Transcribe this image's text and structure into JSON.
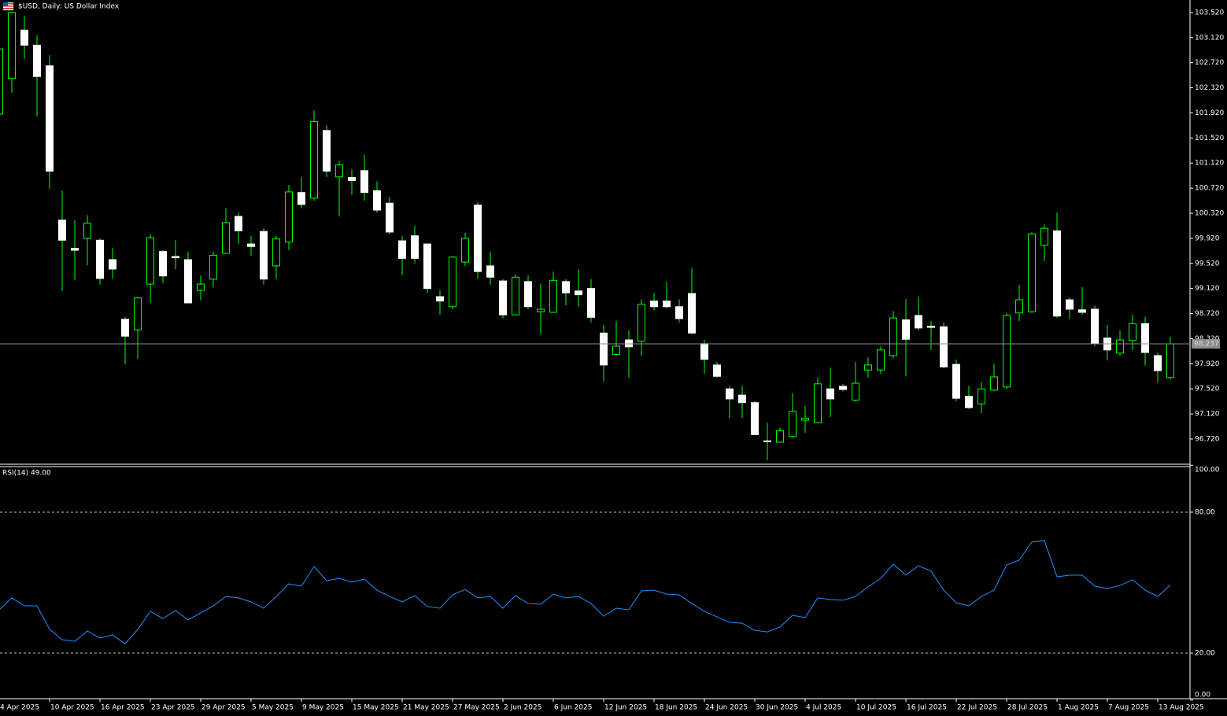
{
  "chart_data": [
    {
      "type": "candlestick",
      "title": "$USD, Daily:  US Dollar Index",
      "categories": [
        "4 Apr 2025",
        null,
        null,
        null,
        "10 Apr 2025",
        null,
        null,
        null,
        "16 Apr 2025",
        null,
        null,
        null,
        "23 Apr 2025",
        null,
        null,
        null,
        "29 Apr 2025",
        null,
        null,
        null,
        "5 May 2025",
        null,
        null,
        null,
        "9 May 2025",
        null,
        null,
        null,
        "15 May 2025",
        null,
        null,
        null,
        "21 May 2025",
        null,
        null,
        null,
        "27 May 2025",
        null,
        null,
        null,
        "2 Jun 2025",
        null,
        null,
        null,
        "6 Jun 2025",
        null,
        null,
        null,
        "12 Jun 2025",
        null,
        null,
        null,
        "18 Jun 2025",
        null,
        null,
        null,
        "24 Jun 2025",
        null,
        null,
        null,
        "30 Jun 2025",
        null,
        null,
        null,
        "4 Jul 2025",
        null,
        null,
        null,
        "10 Jul 2025",
        null,
        null,
        null,
        "16 Jul 2025",
        null,
        null,
        null,
        "22 Jul 2025",
        null,
        null,
        null,
        "28 Jul 2025",
        null,
        null,
        null,
        "1 Aug 2025",
        null,
        null,
        null,
        "7 Aug 2025",
        null,
        null,
        null,
        "13 Aug 2025",
        null
      ],
      "open": [
        101.9,
        102.47,
        103.24,
        103.0,
        102.67,
        100.21,
        99.76,
        99.92,
        99.89,
        99.58,
        98.63,
        98.46,
        99.19,
        99.71,
        99.63,
        99.58,
        99.09,
        99.27,
        99.68,
        100.27,
        99.83,
        100.03,
        99.48,
        99.86,
        100.65,
        100.56,
        101.64,
        100.9,
        100.89,
        101.0,
        100.68,
        100.48,
        99.88,
        99.96,
        99.83,
        98.99,
        98.83,
        99.54,
        100.45,
        99.48,
        99.24,
        98.7,
        99.23,
        98.75,
        98.74,
        99.23,
        99.08,
        99.12,
        98.41,
        98.07,
        98.3,
        98.28,
        98.92,
        98.92,
        98.83,
        99.04,
        98.24,
        97.9,
        97.52,
        97.42,
        97.3,
        96.69,
        96.67,
        96.76,
        97.02,
        96.98,
        97.52,
        97.56,
        97.34,
        97.82,
        97.82,
        98.05,
        98.62,
        98.69,
        98.52,
        98.51,
        97.91,
        97.4,
        97.28,
        97.5,
        97.55,
        98.73,
        98.75,
        99.81,
        100.04,
        98.94,
        98.78,
        98.79,
        98.33,
        98.09,
        98.29,
        98.56,
        98.05,
        97.7
      ],
      "high": [
        103.6,
        103.52,
        103.47,
        103.16,
        102.84,
        100.68,
        100.21,
        100.29,
        99.92,
        99.77,
        98.67,
        98.98,
        99.98,
        99.73,
        99.89,
        99.71,
        99.33,
        99.71,
        100.4,
        100.33,
        99.96,
        100.08,
        99.96,
        100.77,
        100.9,
        101.96,
        101.72,
        101.15,
        101.02,
        101.25,
        100.83,
        100.58,
        99.96,
        100.12,
        99.83,
        99.1,
        99.64,
        100.01,
        100.5,
        99.71,
        99.27,
        99.35,
        99.33,
        99.2,
        99.39,
        99.27,
        99.43,
        99.27,
        98.54,
        98.6,
        98.45,
        98.95,
        99.05,
        99.23,
        98.95,
        99.45,
        98.3,
        97.95,
        97.57,
        97.57,
        97.32,
        96.98,
        96.9,
        97.45,
        97.25,
        97.7,
        97.86,
        97.6,
        97.95,
        98.02,
        98.2,
        98.76,
        98.95,
        98.99,
        98.6,
        98.58,
        97.99,
        97.57,
        97.63,
        97.92,
        98.73,
        99.18,
        100.02,
        100.14,
        100.33,
        98.98,
        99.14,
        98.85,
        98.54,
        98.45,
        98.7,
        98.67,
        98.1,
        98.35
      ],
      "low": [
        101.9,
        102.24,
        102.78,
        101.86,
        100.71,
        99.08,
        99.25,
        99.49,
        99.18,
        99.27,
        97.91,
        98.0,
        98.89,
        99.2,
        99.43,
        98.89,
        98.93,
        99.14,
        99.68,
        99.83,
        99.64,
        99.18,
        99.27,
        99.73,
        100.4,
        100.52,
        100.9,
        100.27,
        100.61,
        100.52,
        100.33,
        99.98,
        99.33,
        99.52,
        99.05,
        98.7,
        98.79,
        99.48,
        99.27,
        99.18,
        98.64,
        98.7,
        98.79,
        98.39,
        98.73,
        98.85,
        98.83,
        98.58,
        97.64,
        98.05,
        97.7,
        98.05,
        98.77,
        98.8,
        98.58,
        98.39,
        97.76,
        97.7,
        97.05,
        97.05,
        96.78,
        96.38,
        96.66,
        96.74,
        96.82,
        96.97,
        97.07,
        97.48,
        97.32,
        97.7,
        97.76,
        98.01,
        97.72,
        98.45,
        98.14,
        97.85,
        97.32,
        97.2,
        97.13,
        97.48,
        97.51,
        98.6,
        98.73,
        99.56,
        98.65,
        98.64,
        98.7,
        98.2,
        97.97,
        98.05,
        98.14,
        97.89,
        97.62,
        97.67
      ],
      "close": [
        102.94,
        103.52,
        103.0,
        102.5,
        100.99,
        99.89,
        99.73,
        100.16,
        99.28,
        99.43,
        98.36,
        98.97,
        99.93,
        99.32,
        99.61,
        98.89,
        99.19,
        99.65,
        100.17,
        100.04,
        99.79,
        99.27,
        99.91,
        100.66,
        100.46,
        101.78,
        100.99,
        101.09,
        100.84,
        100.65,
        100.37,
        100.02,
        99.6,
        99.6,
        99.12,
        98.92,
        99.62,
        99.92,
        99.39,
        99.3,
        98.7,
        99.3,
        98.83,
        98.79,
        99.25,
        99.05,
        99.02,
        98.66,
        97.9,
        98.2,
        98.19,
        98.87,
        98.83,
        98.83,
        98.64,
        98.41,
        97.99,
        97.72,
        97.36,
        97.3,
        96.79,
        96.68,
        96.85,
        97.16,
        97.05,
        97.6,
        97.36,
        97.51,
        97.61,
        97.9,
        98.14,
        98.65,
        98.31,
        98.49,
        98.5,
        97.87,
        97.37,
        97.22,
        97.52,
        97.71,
        98.69,
        98.94,
        99.99,
        100.08,
        98.68,
        98.79,
        98.74,
        98.24,
        98.14,
        98.3,
        98.56,
        98.1,
        97.81,
        98.237
      ],
      "up_color": "#00ff00",
      "down_color": "#ffffff",
      "last_price": 98.237,
      "ylim": [
        96.318,
        103.72
      ],
      "yticks": [
        {
          "value": 103.52,
          "label": "103.520"
        },
        {
          "value": 103.12,
          "label": "103.120"
        },
        {
          "value": 102.72,
          "label": "102.720"
        },
        {
          "value": 102.32,
          "label": "102.320"
        },
        {
          "value": 101.92,
          "label": "101.920"
        },
        {
          "value": 101.52,
          "label": "101.520"
        },
        {
          "value": 101.12,
          "label": "101.120"
        },
        {
          "value": 100.72,
          "label": "100.720"
        },
        {
          "value": 100.32,
          "label": "100.320"
        },
        {
          "value": 99.92,
          "label": "99.920"
        },
        {
          "value": 99.52,
          "label": "99.520"
        },
        {
          "value": 99.12,
          "label": "99.120"
        },
        {
          "value": 98.72,
          "label": "98.720"
        },
        {
          "value": 98.32,
          "label": "98.320"
        },
        {
          "value": 97.92,
          "label": "97.920"
        },
        {
          "value": 97.52,
          "label": "97.520"
        },
        {
          "value": 97.12,
          "label": "97.120"
        },
        {
          "value": 96.72,
          "label": "96.720"
        }
      ],
      "grid": false
    },
    {
      "type": "line",
      "title": "RSI(14) 49.00",
      "series": [
        {
          "color": "#1e90ff",
          "values": [
            38.4,
            43.5,
            40.1,
            40.1,
            30.1,
            25.7,
            25.0,
            29.4,
            26.4,
            27.7,
            24.0,
            30.1,
            37.8,
            34.7,
            38.1,
            34.1,
            37.1,
            40.1,
            44.1,
            43.5,
            41.8,
            39.1,
            44.1,
            49.5,
            48.5,
            56.9,
            50.8,
            51.8,
            50.2,
            51.5,
            46.8,
            44.1,
            41.8,
            44.5,
            39.8,
            39.1,
            44.8,
            47.1,
            43.5,
            44.1,
            39.1,
            44.5,
            41.1,
            40.8,
            45.1,
            43.5,
            44.1,
            41.1,
            35.7,
            39.1,
            38.4,
            46.5,
            46.8,
            45.1,
            44.8,
            41.1,
            37.8,
            35.4,
            33.1,
            32.7,
            29.7,
            29.0,
            31.1,
            36.1,
            35.1,
            43.5,
            42.8,
            42.5,
            44.1,
            48.2,
            51.8,
            57.9,
            53.2,
            57.2,
            54.9,
            46.8,
            41.4,
            40.1,
            44.1,
            46.8,
            57.5,
            59.6,
            67.3,
            67.9,
            52.5,
            53.2,
            53.2,
            48.5,
            47.5,
            48.8,
            51.2,
            46.8,
            44.1,
            49.0
          ]
        }
      ],
      "levels": [
        80,
        20
      ],
      "ylim": [
        0,
        100
      ],
      "yticks": [
        {
          "value": 100,
          "label": "100.00"
        },
        {
          "value": 80,
          "label": "80.00"
        },
        {
          "value": 20,
          "label": "20.00"
        },
        {
          "value": 0,
          "label": "0.00"
        }
      ]
    }
  ]
}
